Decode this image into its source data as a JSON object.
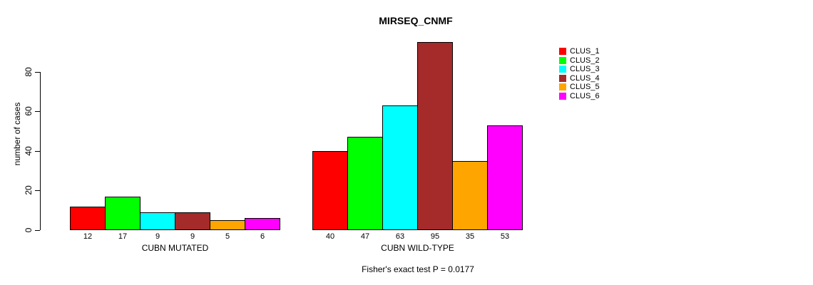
{
  "chart_data": {
    "type": "bar",
    "title": "MIRSEQ_CNMF",
    "ylabel": "number of cases",
    "xlabel": "",
    "ylim": [
      0,
      80
    ],
    "yticks": [
      0,
      20,
      40,
      60,
      80
    ],
    "grid": false,
    "legend_position": "right-outside",
    "series": [
      {
        "name": "CLUS_1",
        "color": "#FF0000"
      },
      {
        "name": "CLUS_2",
        "color": "#00FF00"
      },
      {
        "name": "CLUS_3",
        "color": "#00FFFF"
      },
      {
        "name": "CLUS_4",
        "color": "#A52A2A"
      },
      {
        "name": "CLUS_5",
        "color": "#FFA500"
      },
      {
        "name": "CLUS_6",
        "color": "#FF00FF"
      }
    ],
    "groups": [
      {
        "label": "CUBN MUTATED",
        "values": [
          12,
          17,
          9,
          9,
          5,
          6
        ]
      },
      {
        "label": "CUBN WILD-TYPE",
        "values": [
          40,
          47,
          63,
          95,
          35,
          53
        ]
      }
    ],
    "bar_value_labels": [
      [
        "12",
        "17",
        "9",
        "9",
        "5",
        "6"
      ],
      [
        "40",
        "47",
        "63",
        "95",
        "35",
        "53"
      ]
    ],
    "footnote": "Fisher's exact test P = 0.0177"
  }
}
